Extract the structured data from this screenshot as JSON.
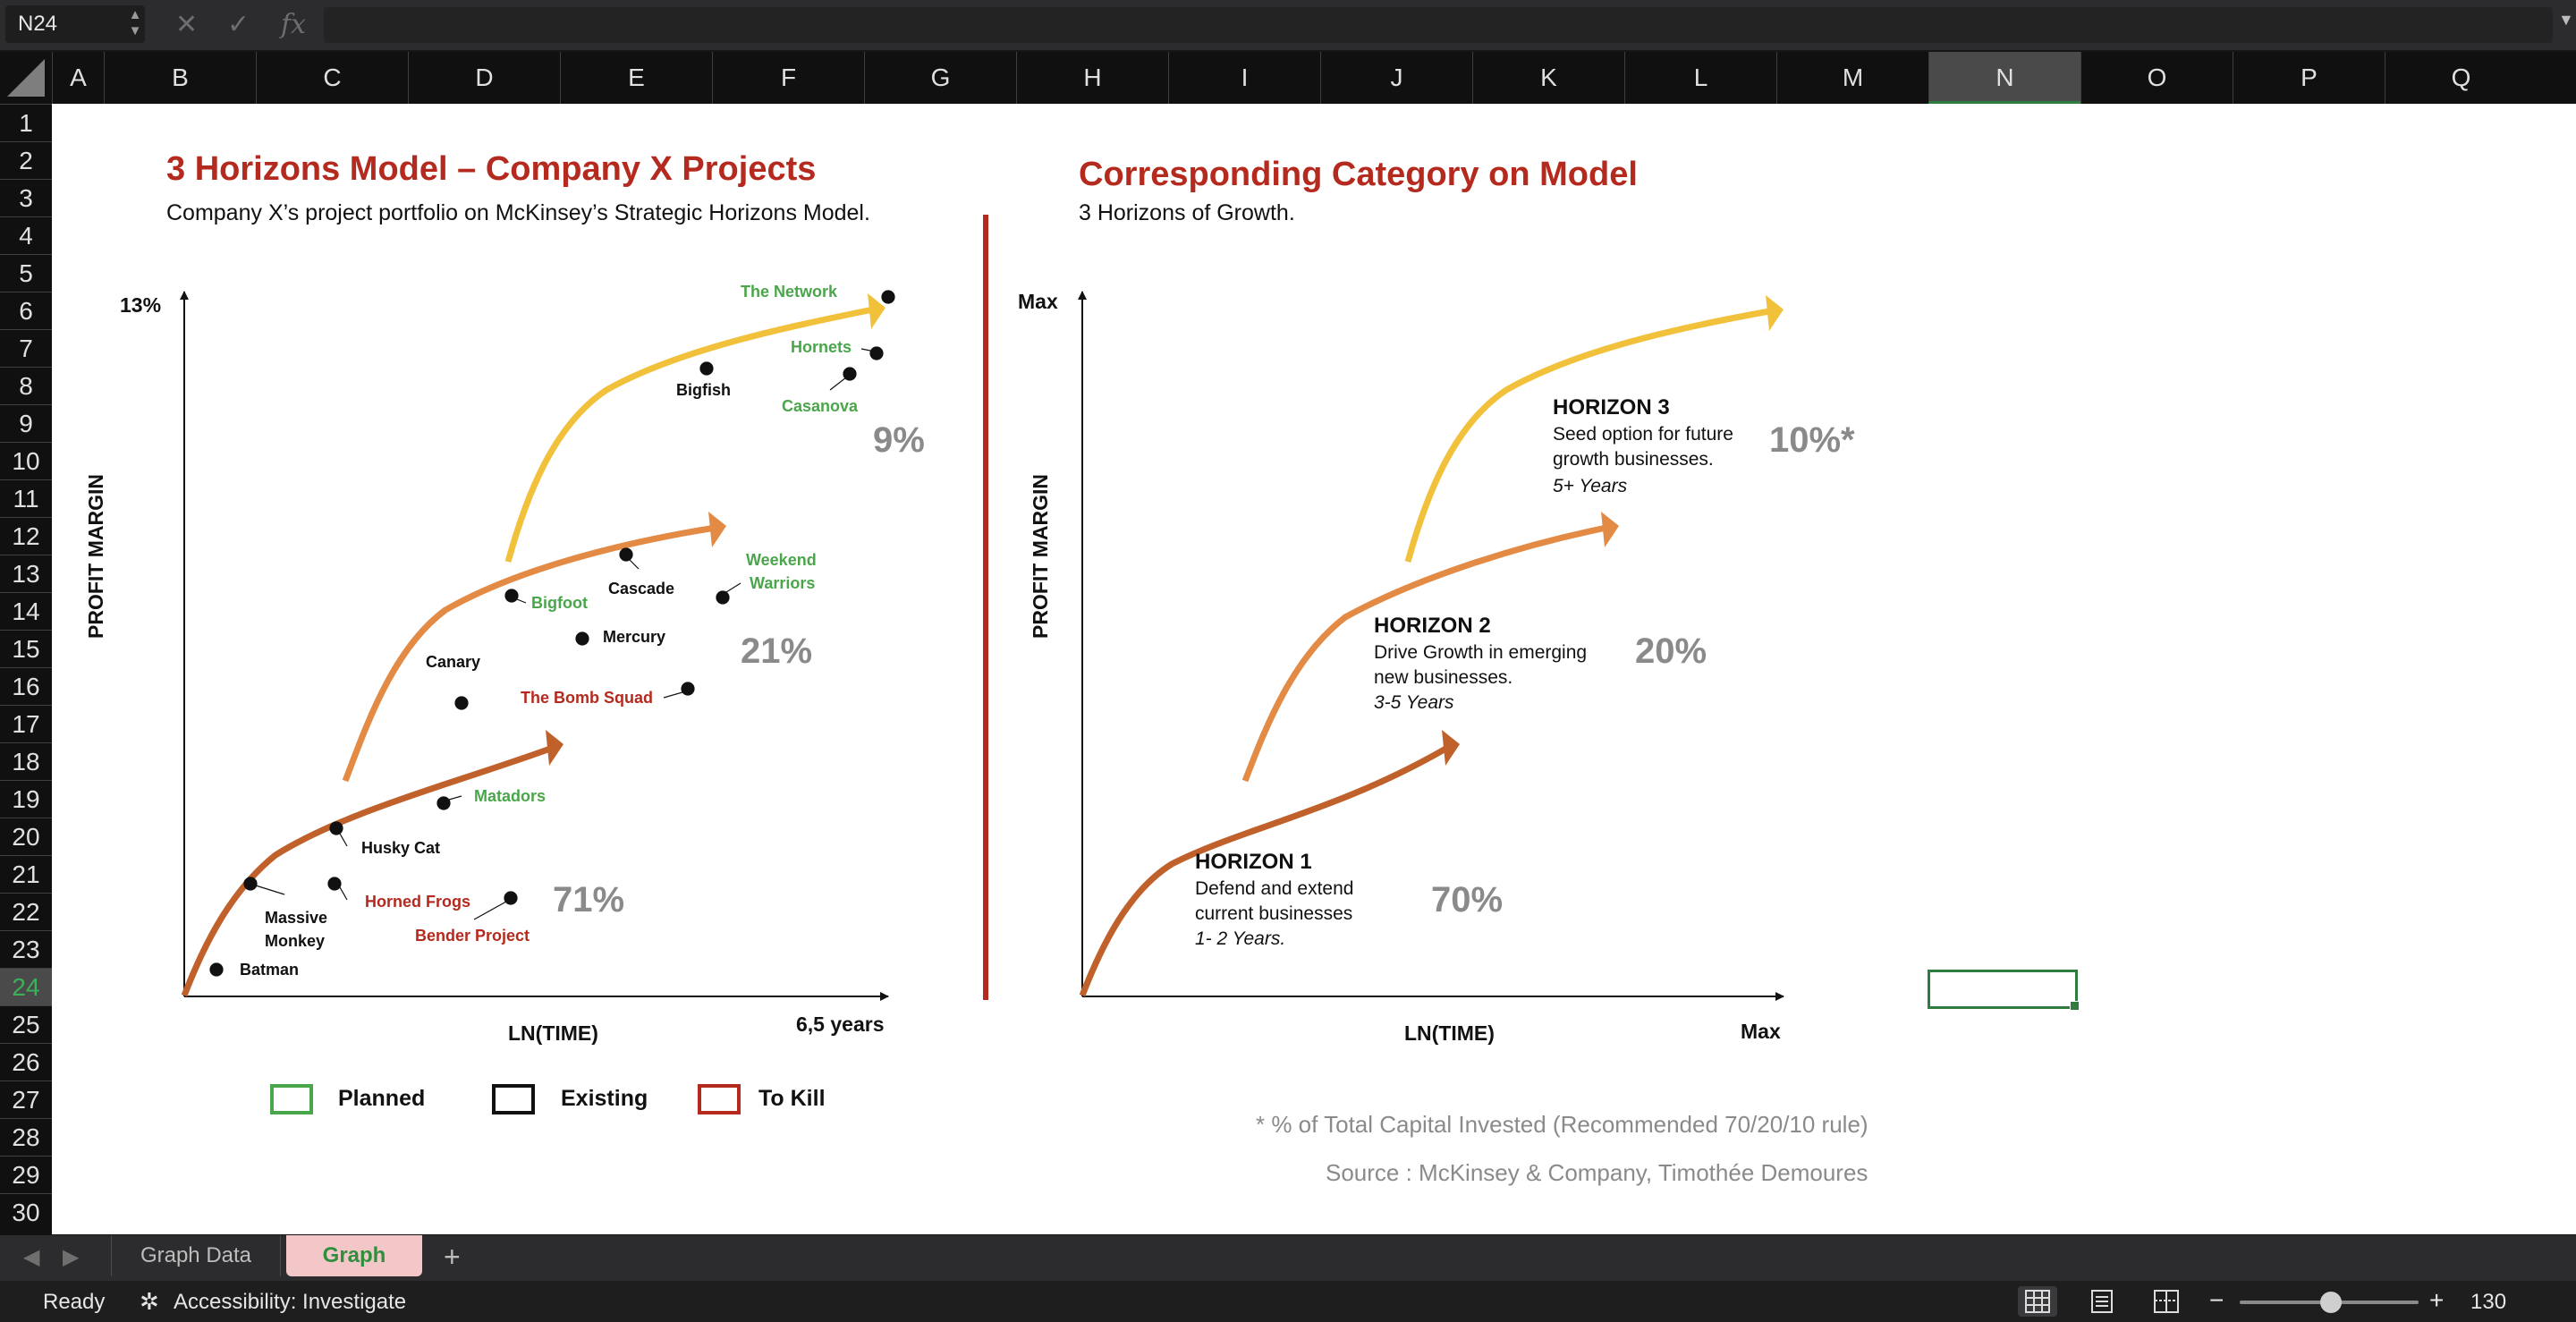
{
  "formula_bar": {
    "name_box": "N24",
    "cancel_icon": "x-icon",
    "enter_icon": "check-icon",
    "function_label": "fx",
    "formula_value": ""
  },
  "columns": [
    "A",
    "B",
    "C",
    "D",
    "E",
    "F",
    "G",
    "H",
    "I",
    "J",
    "K",
    "L",
    "M",
    "N",
    "O",
    "P",
    "Q"
  ],
  "selected_column": "N",
  "rows": [
    "1",
    "2",
    "3",
    "4",
    "5",
    "6",
    "7",
    "8",
    "9",
    "10",
    "11",
    "12",
    "13",
    "14",
    "15",
    "16",
    "17",
    "18",
    "19",
    "20",
    "21",
    "22",
    "23",
    "24",
    "25",
    "26",
    "27",
    "28",
    "29",
    "30"
  ],
  "selected_row": "24",
  "left_chart": {
    "title": "3 Horizons Model – Company X Projects",
    "subtitle": "Company X’s project portfolio on McKinsey’s Strategic Horizons Model.",
    "y_axis_label": "PROFIT MARGIN",
    "y_max_label": "13%",
    "x_axis_label": "LN(TIME)",
    "x_max_label": "6,5 years",
    "horizon_percentages": [
      "71%",
      "21%",
      "9%"
    ],
    "projects": [
      {
        "name": "The Network",
        "status": "Planned"
      },
      {
        "name": "Hornets",
        "status": "Planned"
      },
      {
        "name": "Casanova",
        "status": "Planned"
      },
      {
        "name": "Bigfish",
        "status": "Existing"
      },
      {
        "name": "Weekend",
        "status": "Planned"
      },
      {
        "name": "Warriors",
        "status": "Planned"
      },
      {
        "name": "Cascade",
        "status": "Existing"
      },
      {
        "name": "Bigfoot",
        "status": "Planned"
      },
      {
        "name": "Mercury",
        "status": "Existing"
      },
      {
        "name": "Canary",
        "status": "Existing"
      },
      {
        "name": "The Bomb Squad",
        "status": "To Kill"
      },
      {
        "name": "Matadors",
        "status": "Planned"
      },
      {
        "name": "Husky Cat",
        "status": "Existing"
      },
      {
        "name": "Massive",
        "status": "Existing"
      },
      {
        "name": "Monkey",
        "status": "Existing"
      },
      {
        "name": "Horned Frogs",
        "status": "To Kill"
      },
      {
        "name": "Bender Project",
        "status": "To Kill"
      },
      {
        "name": "Batman",
        "status": "Existing"
      }
    ],
    "legend": [
      {
        "label": "Planned",
        "color": "#4aa64a"
      },
      {
        "label": "Existing",
        "color": "#111111"
      },
      {
        "label": "To Kill",
        "color": "#b52a1e"
      }
    ]
  },
  "right_chart": {
    "title": "Corresponding Category on Model",
    "subtitle": "3 Horizons of Growth.",
    "y_axis_label": "PROFIT MARGIN",
    "y_max_label": "Max",
    "x_axis_label": "LN(TIME)",
    "x_max_label": "Max",
    "horizons": [
      {
        "title": "HORIZON 1",
        "description": "Defend and extend current businesses",
        "years": "1- 2 Years.",
        "percentage": "70%",
        "color": "#c0602a"
      },
      {
        "title": "HORIZON 2",
        "description": "Drive Growth in emerging new businesses.",
        "years": "3-5 Years",
        "percentage": "20%",
        "color": "#e38a45"
      },
      {
        "title": "HORIZON 3",
        "description": "Seed option for future growth businesses.",
        "years": "5+ Years",
        "percentage": "10%*",
        "color": "#f2c13c"
      }
    ],
    "footnote": "* % of Total Capital Invested (Recommended 70/20/10 rule)",
    "source": "Source : McKinsey & Company, Timothée Demoures"
  },
  "divider_color": "#b52a1e",
  "sheet_tabs": [
    {
      "label": "Graph Data",
      "active": false
    },
    {
      "label": "Graph",
      "active": true
    }
  ],
  "add_sheet_label": "+",
  "status_bar": {
    "status": "Ready",
    "accessibility": "Accessibility: Investigate",
    "zoom_minus": "−",
    "zoom_plus": "+",
    "zoom_level": "130"
  }
}
